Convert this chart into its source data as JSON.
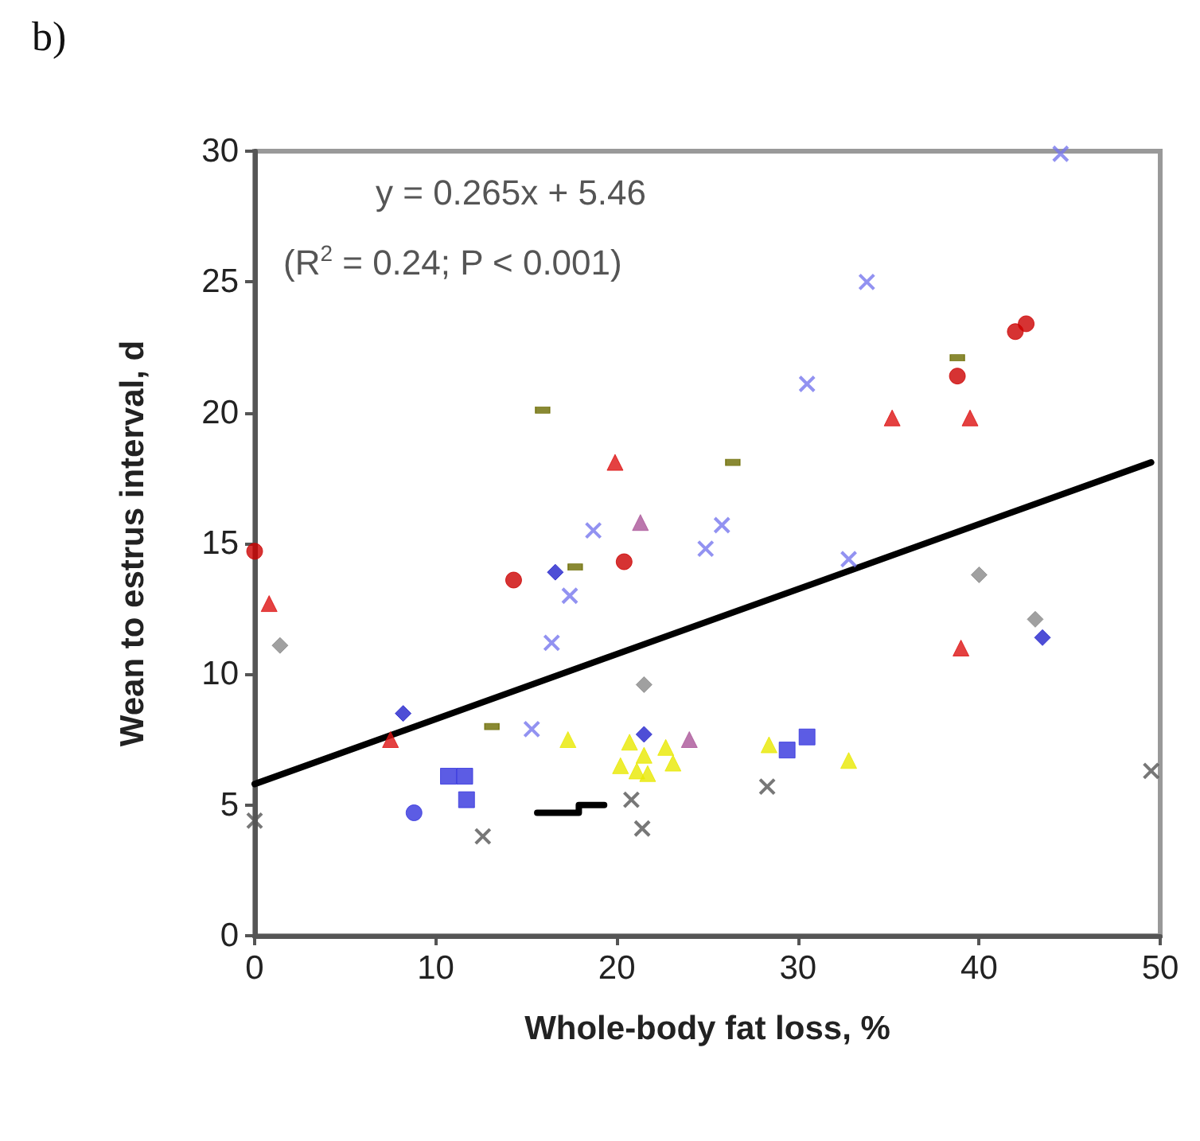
{
  "chart_data": {
    "type": "scatter",
    "title": "b)",
    "xlabel": "Whole-body fat loss, %",
    "ylabel": "Wean to estrus interval, d",
    "annotations": [
      "y = 0.265x + 5.46",
      "(R$^{2}$ = 0.24; P < 0.001)"
    ],
    "xlim": [
      0,
      50
    ],
    "xticks": [
      0,
      10,
      20,
      30,
      40,
      50
    ],
    "ylim": [
      0,
      30
    ],
    "yticks": [
      0,
      5,
      10,
      15,
      20,
      25,
      30
    ],
    "grid": false,
    "series": [
      {
        "color": "#cc0000",
        "marker": "circle",
        "x": [
          0,
          14.3,
          20.4,
          38.8,
          42.0,
          42.6
        ],
        "values": [
          14.7,
          13.6,
          14.3,
          21.4,
          23.1,
          23.4
        ]
      },
      {
        "color": "#dd1111",
        "marker": "triangle",
        "x": [
          0.8,
          7.5,
          19.9,
          35.2,
          39.5,
          39.0
        ],
        "values": [
          12.7,
          7.5,
          18.1,
          19.8,
          19.8,
          11.0
        ]
      },
      {
        "color": "#7777ee",
        "marker": "cross",
        "x": [
          44.5,
          33.8,
          30.5,
          25.8,
          18.7,
          17.4,
          16.4,
          15.3,
          24.9,
          32.8
        ],
        "values": [
          29.9,
          25.0,
          21.1,
          15.7,
          15.5,
          13.0,
          11.2,
          7.9,
          14.8,
          14.4
        ]
      },
      {
        "color": "#6b6b00",
        "marker": "square",
        "x": [
          15.9,
          26.4,
          38.8,
          17.7,
          13.1
        ],
        "values": [
          20.1,
          18.1,
          22.1,
          14.1,
          8.0
        ]
      },
      {
        "color": "#888888",
        "marker": "diamond",
        "x": [
          1.4,
          21.5,
          40.0,
          43.1
        ],
        "values": [
          11.1,
          9.6,
          13.8,
          12.1
        ]
      },
      {
        "color": "#aa5599",
        "marker": "triangle",
        "x": [
          21.3,
          24.0
        ],
        "values": [
          15.8,
          7.5
        ]
      },
      {
        "color": "#2222cc",
        "marker": "diamond",
        "x": [
          8.2,
          16.6,
          21.5,
          43.5
        ],
        "values": [
          8.5,
          13.9,
          7.7,
          11.4
        ]
      },
      {
        "color": "#3333dd",
        "marker": "square",
        "x": [
          10.7,
          11.6,
          11.7,
          30.5,
          29.4
        ],
        "values": [
          6.1,
          6.1,
          5.2,
          7.6,
          7.1
        ]
      },
      {
        "color": "#3333dd",
        "marker": "circle",
        "x": [
          8.8
        ],
        "values": [
          4.7
        ]
      },
      {
        "color": "#e8e800",
        "marker": "triangle",
        "x": [
          17.3,
          20.7,
          21.5,
          21.1,
          21.7,
          22.7,
          23.1,
          20.2,
          28.4,
          32.8
        ],
        "values": [
          7.5,
          7.4,
          6.9,
          6.3,
          6.2,
          7.2,
          6.6,
          6.5,
          7.3,
          6.7
        ]
      },
      {
        "color": "#555555",
        "marker": "cross",
        "x": [
          0,
          12.6,
          20.8,
          21.4,
          28.3,
          49.5
        ],
        "values": [
          4.4,
          3.8,
          5.2,
          4.1,
          5.7,
          6.3
        ]
      },
      {
        "type": "line",
        "color": "#000000",
        "marker": "none",
        "x": [
          15.6,
          17.9,
          17.9,
          19.3
        ],
        "values": [
          4.7,
          4.7,
          5.0,
          5.0
        ]
      },
      {
        "type": "line",
        "color": "#000000",
        "marker": "none",
        "x": [
          0,
          49.5
        ],
        "values": [
          5.8,
          18.1
        ]
      }
    ]
  }
}
